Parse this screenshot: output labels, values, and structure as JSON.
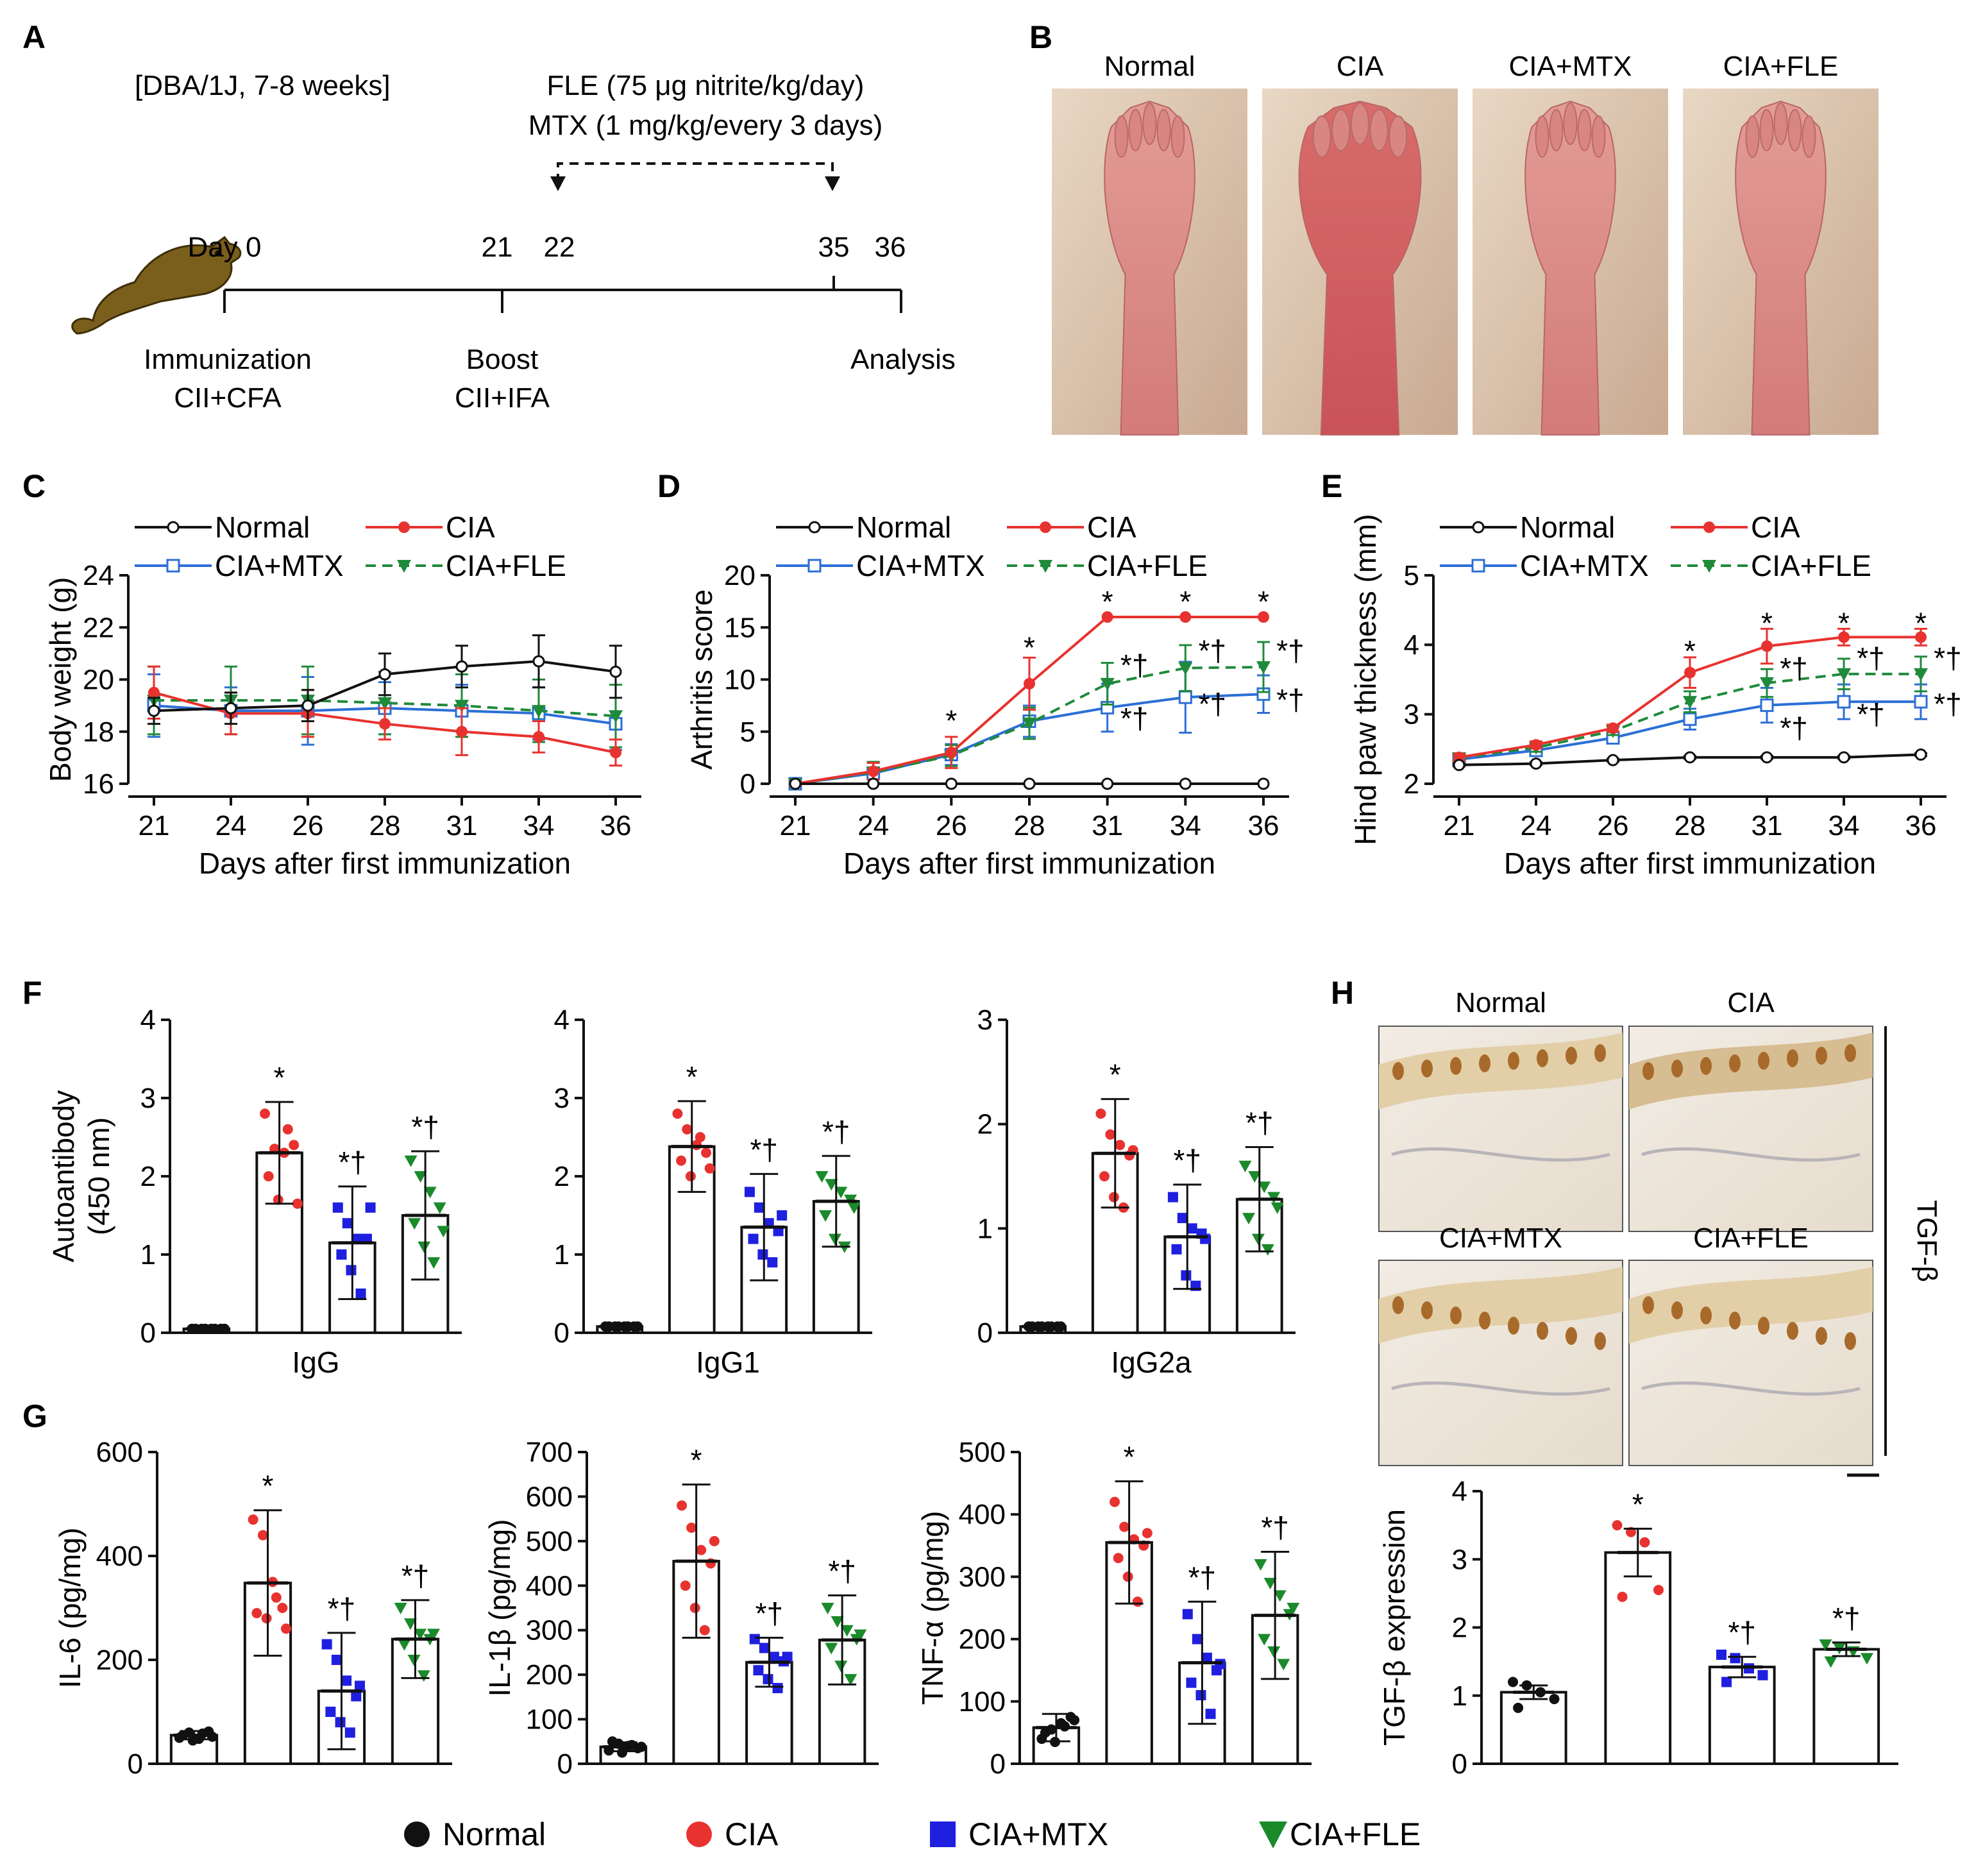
{
  "colors": {
    "normal": "#111111",
    "cia": "#e8322f",
    "mtx": "#2b6fd6",
    "fle": "#1f8a3a",
    "mtx_dot": "#1f1fe0",
    "fle_dot": "#1a8a2a"
  },
  "panel_labels": {
    "A": "A",
    "B": "B",
    "C": "C",
    "D": "D",
    "E": "E",
    "F": "F",
    "G": "G",
    "H": "H"
  },
  "timeline": {
    "strain": "[DBA/1J, 7-8 weeks]",
    "fle_dose": "FLE (75 μg nitrite/kg/day)",
    "mtx_dose": "MTX (1 mg/kg/every 3 days)",
    "day0": "Day 0",
    "day21": "21",
    "day22": "22",
    "day35": "35",
    "day36": "36",
    "immunization": "Immunization",
    "immunization_agents": "CII+CFA",
    "boost": "Boost",
    "boost_agents": "CII+IFA",
    "analysis": "Analysis"
  },
  "paw_images": {
    "titles": [
      "Normal",
      "CIA",
      "CIA+MTX",
      "CIA+FLE"
    ]
  },
  "histology": {
    "titles": [
      "Normal",
      "CIA",
      "CIA+MTX",
      "CIA+FLE"
    ],
    "stain_label": "TGF-β"
  },
  "group_legend": {
    "items": [
      "Normal",
      "CIA",
      "CIA+MTX",
      "CIA+FLE"
    ]
  },
  "annot": {
    "star": "*",
    "star_dagger": "*†"
  },
  "chart_data": [
    {
      "id": "C",
      "type": "line",
      "xlabel": "Days after first immunization",
      "ylabel": "Body weight (g)",
      "ylim": [
        16,
        24
      ],
      "yticks": [
        16,
        18,
        20,
        22,
        24
      ],
      "categories": [
        "21",
        "24",
        "26",
        "28",
        "31",
        "34",
        "36"
      ],
      "legend": [
        "Normal",
        "CIA",
        "CIA+MTX",
        "CIA+FLE"
      ],
      "series": [
        {
          "name": "Normal",
          "values": [
            18.8,
            18.9,
            19.0,
            20.2,
            20.5,
            20.7,
            20.3
          ],
          "err": [
            0.5,
            0.6,
            0.6,
            0.8,
            0.8,
            1.0,
            1.0
          ]
        },
        {
          "name": "CIA",
          "values": [
            19.5,
            18.7,
            18.7,
            18.3,
            18.0,
            17.8,
            17.2
          ],
          "err": [
            1.0,
            0.8,
            0.9,
            0.6,
            0.9,
            0.6,
            0.5
          ]
        },
        {
          "name": "CIA+MTX",
          "values": [
            19.0,
            18.8,
            18.8,
            18.9,
            18.8,
            18.7,
            18.3
          ],
          "err": [
            1.2,
            0.9,
            1.3,
            1.0,
            1.0,
            1.0,
            1.0
          ]
        },
        {
          "name": "CIA+FLE",
          "values": [
            19.2,
            19.2,
            19.2,
            19.1,
            19.0,
            18.8,
            18.6
          ],
          "err": [
            1.3,
            1.3,
            1.3,
            1.2,
            1.2,
            1.2,
            1.2
          ]
        }
      ],
      "annotations": []
    },
    {
      "id": "D",
      "type": "line",
      "xlabel": "Days after first immunization",
      "ylabel": "Arthritis score",
      "ylim": [
        0,
        20
      ],
      "yticks": [
        0,
        5,
        10,
        15,
        20
      ],
      "categories": [
        "21",
        "24",
        "26",
        "28",
        "31",
        "34",
        "36"
      ],
      "legend": [
        "Normal",
        "CIA",
        "CIA+MTX",
        "CIA+FLE"
      ],
      "series": [
        {
          "name": "Normal",
          "values": [
            0,
            0,
            0,
            0,
            0,
            0,
            0
          ],
          "err": [
            0,
            0,
            0,
            0,
            0,
            0,
            0
          ]
        },
        {
          "name": "CIA",
          "values": [
            0,
            1.2,
            3.0,
            9.6,
            16,
            16,
            16
          ],
          "err": [
            0.2,
            0.8,
            1.5,
            2.5,
            0,
            0,
            0
          ]
        },
        {
          "name": "CIA+MTX",
          "values": [
            0,
            1.0,
            2.8,
            6.0,
            7.3,
            8.3,
            8.6
          ],
          "err": [
            0.2,
            1.0,
            1.0,
            1.5,
            2.3,
            3.4,
            1.8
          ]
        },
        {
          "name": "CIA+FLE",
          "values": [
            0,
            1.1,
            2.7,
            5.8,
            9.6,
            11.1,
            11.2
          ],
          "err": [
            0.2,
            1.0,
            1.0,
            1.5,
            2.0,
            2.2,
            2.4
          ]
        }
      ],
      "annotations": [
        {
          "label": "*",
          "x": "26",
          "y": 6.2
        },
        {
          "label": "*",
          "x": "28",
          "y": 13.2
        },
        {
          "label": "*",
          "x": "31",
          "y": 17.6
        },
        {
          "label": "*",
          "x": "34",
          "y": 17.6
        },
        {
          "label": "*",
          "x": "36",
          "y": 17.6
        },
        {
          "label": "*†",
          "x": "31",
          "y": 11.5,
          "dx": 1
        },
        {
          "label": "*†",
          "x": "34",
          "y": 12.9,
          "dx": 1
        },
        {
          "label": "*†",
          "x": "36",
          "y": 12.9,
          "dx": 1
        },
        {
          "label": "*†",
          "x": "31",
          "y": 6.4,
          "dx": 1
        },
        {
          "label": "*†",
          "x": "34",
          "y": 7.8,
          "dx": 1
        },
        {
          "label": "*†",
          "x": "36",
          "y": 8.2,
          "dx": 1
        }
      ]
    },
    {
      "id": "E",
      "type": "line",
      "xlabel": "Days after first immunization",
      "ylabel": "Hind paw thickness (mm)",
      "ylim": [
        2,
        5
      ],
      "yticks": [
        2,
        3,
        4,
        5
      ],
      "categories": [
        "21",
        "24",
        "26",
        "28",
        "31",
        "34",
        "36"
      ],
      "legend": [
        "Normal",
        "CIA",
        "CIA+MTX",
        "CIA+FLE"
      ],
      "series": [
        {
          "name": "Normal",
          "values": [
            2.27,
            2.29,
            2.34,
            2.38,
            2.38,
            2.38,
            2.42
          ],
          "err": [
            0.02,
            0.02,
            0.02,
            0.02,
            0.02,
            0.02,
            0.02
          ]
        },
        {
          "name": "CIA",
          "values": [
            2.38,
            2.56,
            2.8,
            3.6,
            3.98,
            4.11,
            4.11
          ],
          "err": [
            0.05,
            0.05,
            0.05,
            0.22,
            0.25,
            0.12,
            0.12
          ]
        },
        {
          "name": "CIA+MTX",
          "values": [
            2.35,
            2.48,
            2.66,
            2.93,
            3.13,
            3.18,
            3.18
          ],
          "err": [
            0.05,
            0.06,
            0.06,
            0.15,
            0.25,
            0.25,
            0.25
          ]
        },
        {
          "name": "CIA+FLE",
          "values": [
            2.37,
            2.52,
            2.76,
            3.18,
            3.45,
            3.58,
            3.58
          ],
          "err": [
            0.05,
            0.06,
            0.06,
            0.15,
            0.2,
            0.22,
            0.25
          ]
        }
      ],
      "annotations": [
        {
          "label": "*",
          "x": "28",
          "y": 3.93
        },
        {
          "label": "*",
          "x": "31",
          "y": 4.33
        },
        {
          "label": "*",
          "x": "34",
          "y": 4.33
        },
        {
          "label": "*",
          "x": "36",
          "y": 4.33
        },
        {
          "label": "*†",
          "x": "31",
          "y": 3.68,
          "dx": 1
        },
        {
          "label": "*†",
          "x": "34",
          "y": 3.83,
          "dx": 1
        },
        {
          "label": "*†",
          "x": "36",
          "y": 3.83,
          "dx": 1
        },
        {
          "label": "*†",
          "x": "31",
          "y": 2.82,
          "dx": 1
        },
        {
          "label": "*†",
          "x": "34",
          "y": 3.02,
          "dx": 1
        },
        {
          "label": "*†",
          "x": "36",
          "y": 3.17,
          "dx": 1
        }
      ]
    },
    {
      "id": "F1",
      "type": "bar",
      "ylabel": "Autoantibody",
      "ylabel2": "(450 nm)",
      "xlabel": "IgG",
      "ylim": [
        0,
        4
      ],
      "yticks": [
        0,
        1,
        2,
        3,
        4
      ],
      "categories": [
        "Normal",
        "CIA",
        "CIA+MTX",
        "CIA+FLE"
      ],
      "values": [
        0.05,
        2.3,
        1.15,
        1.5
      ],
      "err": [
        0.02,
        0.65,
        0.72,
        0.82
      ],
      "annotations": [
        "",
        "*",
        "*†",
        "*†"
      ],
      "points": [
        [
          0.05,
          0.05,
          0.05,
          0.05,
          0.05,
          0.05,
          0.05,
          0.05
        ],
        [
          2.8,
          2.35,
          2.3,
          2.4,
          2.0,
          1.7,
          2.6,
          1.65
        ],
        [
          1.6,
          1.4,
          1.2,
          1.2,
          1.0,
          0.8,
          0.5,
          1.6
        ],
        [
          2.2,
          2.0,
          1.8,
          1.6,
          1.4,
          1.1,
          0.9,
          1.3
        ]
      ]
    },
    {
      "id": "F2",
      "type": "bar",
      "xlabel": "IgG1",
      "ylim": [
        0,
        4
      ],
      "yticks": [
        0,
        1,
        2,
        3,
        4
      ],
      "categories": [
        "Normal",
        "CIA",
        "CIA+MTX",
        "CIA+FLE"
      ],
      "values": [
        0.08,
        2.38,
        1.35,
        1.68
      ],
      "err": [
        0.02,
        0.58,
        0.68,
        0.58
      ],
      "annotations": [
        "",
        "*",
        "*†",
        "*†"
      ],
      "points": [
        [
          0.08,
          0.08,
          0.08,
          0.08,
          0.08,
          0.08,
          0.08,
          0.08
        ],
        [
          2.8,
          2.6,
          2.4,
          2.3,
          2.2,
          2.0,
          2.5,
          2.1
        ],
        [
          1.8,
          1.6,
          1.4,
          1.3,
          1.2,
          1.0,
          0.9,
          1.5
        ],
        [
          2.0,
          1.9,
          1.8,
          1.7,
          1.5,
          1.2,
          1.1,
          1.6
        ]
      ]
    },
    {
      "id": "F3",
      "type": "bar",
      "xlabel": "IgG2a",
      "ylim": [
        0,
        3
      ],
      "yticks": [
        0,
        1,
        2,
        3
      ],
      "categories": [
        "Normal",
        "CIA",
        "CIA+MTX",
        "CIA+FLE"
      ],
      "values": [
        0.06,
        1.72,
        0.92,
        1.28
      ],
      "err": [
        0.02,
        0.52,
        0.5,
        0.5
      ],
      "annotations": [
        "",
        "*",
        "*†",
        "*†"
      ],
      "points": [
        [
          0.06,
          0.06,
          0.06,
          0.06,
          0.06,
          0.06,
          0.06,
          0.06
        ],
        [
          2.1,
          1.9,
          1.8,
          1.7,
          1.5,
          1.3,
          1.2,
          1.75
        ],
        [
          1.3,
          1.1,
          1.0,
          0.95,
          0.8,
          0.55,
          0.45,
          0.9
        ],
        [
          1.6,
          1.5,
          1.4,
          1.3,
          1.1,
          0.9,
          0.8,
          1.2
        ]
      ]
    },
    {
      "id": "G1",
      "type": "bar",
      "ylabel": "IL-6 (pg/mg)",
      "ylim": [
        0,
        600
      ],
      "yticks": [
        0,
        200,
        400,
        600
      ],
      "categories": [
        "Normal",
        "CIA",
        "CIA+MTX",
        "CIA+FLE"
      ],
      "values": [
        55,
        348,
        140,
        240
      ],
      "err": [
        8,
        140,
        112,
        75
      ],
      "annotations": [
        "",
        "*",
        "*†",
        "*†"
      ],
      "points": [
        [
          50,
          60,
          48,
          62,
          55,
          45,
          58,
          52
        ],
        [
          470,
          440,
          350,
          300,
          290,
          280,
          320,
          260
        ],
        [
          230,
          200,
          160,
          130,
          100,
          80,
          60,
          150
        ],
        [
          300,
          270,
          250,
          240,
          230,
          200,
          170,
          250
        ]
      ]
    },
    {
      "id": "G2",
      "type": "bar",
      "ylabel": "IL-1β (pg/mg)",
      "ylim": [
        0,
        700
      ],
      "yticks": [
        0,
        100,
        200,
        300,
        400,
        500,
        600,
        700
      ],
      "categories": [
        "Normal",
        "CIA",
        "CIA+MTX",
        "CIA+FLE"
      ],
      "values": [
        38,
        455,
        228,
        278
      ],
      "err": [
        10,
        172,
        55,
        100
      ],
      "annotations": [
        "",
        "*",
        "*†",
        "*†"
      ],
      "points": [
        [
          30,
          45,
          40,
          35,
          50,
          25,
          42,
          38
        ],
        [
          580,
          530,
          480,
          450,
          400,
          350,
          300,
          500
        ],
        [
          280,
          260,
          240,
          230,
          210,
          190,
          170,
          240
        ],
        [
          350,
          320,
          300,
          280,
          260,
          220,
          190,
          290
        ]
      ]
    },
    {
      "id": "G3",
      "type": "bar",
      "ylabel": "TNF-α (pg/mg)",
      "ylim": [
        0,
        500
      ],
      "yticks": [
        0,
        100,
        200,
        300,
        400,
        500
      ],
      "categories": [
        "Normal",
        "CIA",
        "CIA+MTX",
        "CIA+FLE"
      ],
      "values": [
        58,
        355,
        162,
        238
      ],
      "err": [
        22,
        98,
        98,
        102
      ],
      "annotations": [
        "",
        "*",
        "*†",
        "*†"
      ],
      "points": [
        [
          40,
          55,
          65,
          75,
          50,
          35,
          60,
          70
        ],
        [
          420,
          380,
          360,
          350,
          330,
          300,
          260,
          370
        ],
        [
          240,
          200,
          170,
          150,
          130,
          110,
          80,
          160
        ],
        [
          320,
          290,
          270,
          240,
          200,
          180,
          160,
          250
        ]
      ]
    },
    {
      "id": "H",
      "type": "bar",
      "ylabel": "TGF-β expression",
      "ylim": [
        0,
        4
      ],
      "yticks": [
        0,
        1,
        2,
        3,
        4
      ],
      "categories": [
        "Normal",
        "CIA",
        "CIA+MTX",
        "CIA+FLE"
      ],
      "values": [
        1.05,
        3.1,
        1.42,
        1.68
      ],
      "err": [
        0.1,
        0.35,
        0.15,
        0.1
      ],
      "annotations": [
        "",
        "*",
        "*†",
        "*†"
      ],
      "points": [
        [
          1.2,
          1.15,
          1.05,
          0.95,
          0.82
        ],
        [
          3.5,
          3.4,
          3.25,
          2.55,
          2.45
        ],
        [
          1.6,
          1.55,
          1.4,
          1.3,
          1.2
        ],
        [
          1.75,
          1.7,
          1.65,
          1.55,
          1.5
        ]
      ]
    }
  ]
}
